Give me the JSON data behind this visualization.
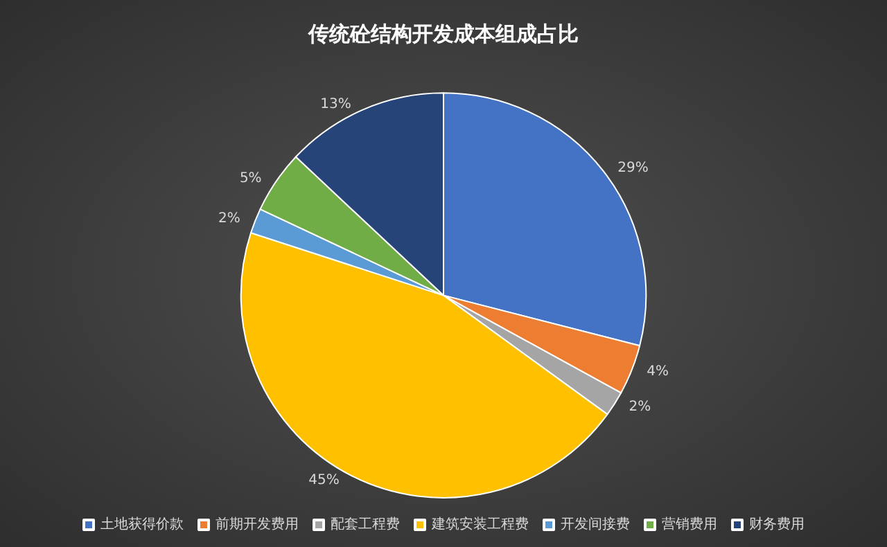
{
  "chart_data": {
    "type": "pie",
    "title": "传统砼结构开发成本组成占比",
    "categories": [
      "土地获得价款",
      "前期开发费用",
      "配套工程费",
      "建筑安装工程费",
      "开发间接费",
      "营销费用",
      "财务费用"
    ],
    "values": [
      29,
      4,
      2,
      45,
      2,
      5,
      13
    ],
    "colors": [
      "#4472c4",
      "#ed7d31",
      "#a5a5a5",
      "#ffc000",
      "#5b9bd5",
      "#70ad47",
      "#264478"
    ],
    "value_labels": [
      "29%",
      "4%",
      "2%",
      "45%",
      "2%",
      "5%",
      "13%"
    ],
    "legend": "bottom"
  }
}
